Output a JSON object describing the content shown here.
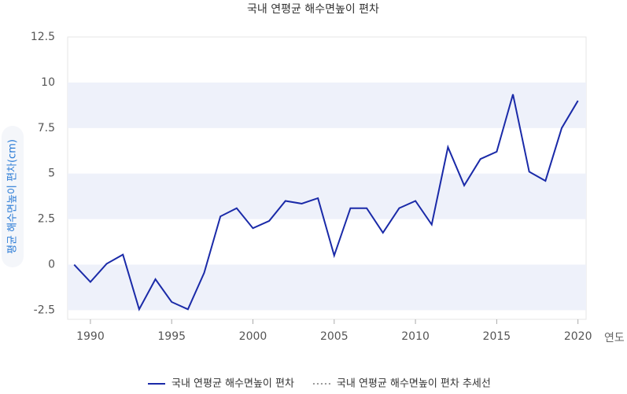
{
  "chart_data": {
    "type": "line",
    "title": "국내 연평균 해수면높이 편차",
    "y_label": "평균 해수면높이 편차(cm)",
    "x_label": "연도",
    "x": [
      1989,
      1990,
      1991,
      1992,
      1993,
      1994,
      1995,
      1996,
      1997,
      1998,
      1999,
      2000,
      2001,
      2002,
      2003,
      2004,
      2005,
      2006,
      2007,
      2008,
      2009,
      2010,
      2011,
      2012,
      2013,
      2014,
      2015,
      2016,
      2017,
      2018,
      2019,
      2020
    ],
    "series": [
      {
        "name": "국내 연평균 해수면높이 편차",
        "color": "#1a2aa8",
        "style": "solid",
        "values": [
          0,
          -0.95,
          0.05,
          0.55,
          -2.45,
          -0.8,
          -2.05,
          -2.45,
          -0.45,
          2.65,
          3.1,
          2.0,
          2.4,
          3.5,
          3.35,
          3.65,
          0.5,
          3.1,
          3.1,
          1.75,
          3.1,
          3.5,
          2.2,
          6.45,
          4.35,
          5.8,
          6.2,
          9.35,
          5.1,
          4.6,
          7.5,
          9.0
        ]
      },
      {
        "name": "국내 연평균 해수면높이 편차 추세선",
        "color": "#999999",
        "style": "dotted",
        "values": [
          null,
          null,
          null,
          null,
          null,
          null,
          null,
          null,
          null,
          null,
          null,
          null,
          null,
          null,
          null,
          null,
          null,
          null,
          null,
          null,
          null,
          null,
          null,
          null,
          null,
          null,
          null,
          null,
          null,
          null,
          null,
          null
        ]
      }
    ],
    "xlim": [
      1988.6,
      2020.5
    ],
    "xticks": [
      1990,
      1995,
      2000,
      2005,
      2010,
      2015,
      2020
    ],
    "ylim": [
      -3,
      12.5
    ],
    "yticks": [
      {
        "value": 12.5,
        "label": "12.5"
      },
      10,
      7.5,
      5,
      2.5,
      0,
      -2.5
    ],
    "grid": "bands",
    "band_color": "#eef1fa",
    "legend": "bottom"
  }
}
